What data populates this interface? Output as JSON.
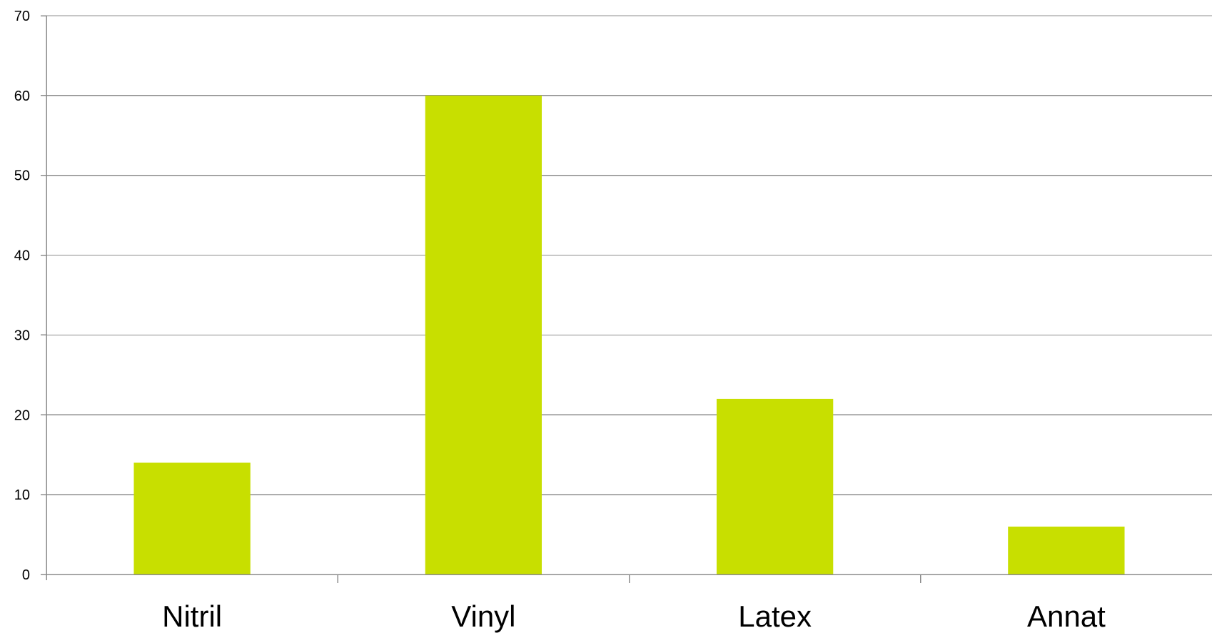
{
  "chart_data": {
    "type": "bar",
    "categories": [
      "Nitril",
      "Vinyl",
      "Latex",
      "Annat"
    ],
    "values": [
      14,
      60,
      22,
      6
    ],
    "ylim": [
      0,
      70
    ],
    "yticks": [
      "0",
      "10",
      "20",
      "30",
      "40",
      "50",
      "60",
      "70"
    ],
    "grid": true,
    "bar_color": "#c8df00",
    "title": "",
    "xlabel": "",
    "ylabel": ""
  }
}
